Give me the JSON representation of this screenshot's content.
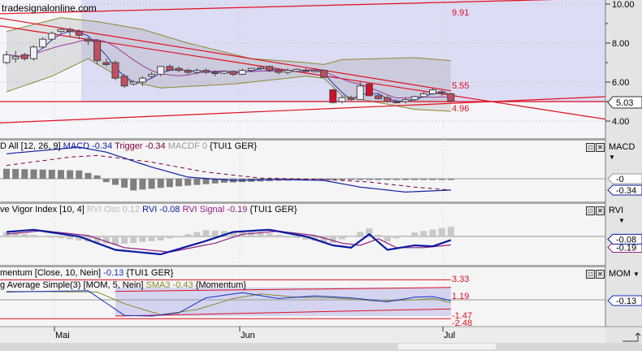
{
  "watermark": "tradesignalonline.com",
  "colors": {
    "up": "#f0f0f8",
    "down": "#c05060",
    "down_strong": "#d0102a",
    "ma_fast": "#3030c0",
    "ma_slow": "#9a3a9a",
    "band": "#8a8a30",
    "trend": "#e01020",
    "shade": "#dcdcf4",
    "macd": "#1020a0",
    "trigger": "#800040",
    "hist": "#808080",
    "rvi": "#0a1aa0",
    "rvi_signal": "#902080",
    "rvi_osc": "#c8c8c8",
    "mom": "#1030c0",
    "sma3": "#8a8a30"
  },
  "time_axis": {
    "labels": [
      "Mai",
      "Jun",
      "Jul"
    ]
  },
  "price": {
    "axis_label_ticks": [
      "10.00",
      "8.00",
      "6.00",
      "4.00"
    ],
    "last": "5.03",
    "level_labels": [
      "9.91",
      "5.55",
      "4.96"
    ],
    "ohlc": [
      [
        7.0,
        7.6,
        6.9,
        7.4
      ],
      [
        7.2,
        7.6,
        7.0,
        7.3
      ],
      [
        7.4,
        7.5,
        7.1,
        7.2
      ],
      [
        7.2,
        7.9,
        7.1,
        7.8
      ],
      [
        7.8,
        8.3,
        7.7,
        8.2
      ],
      [
        8.2,
        8.6,
        8.1,
        8.5
      ],
      [
        8.6,
        8.8,
        8.5,
        8.7
      ],
      [
        8.7,
        8.8,
        8.3,
        8.6
      ],
      [
        8.6,
        8.7,
        8.2,
        8.4
      ],
      [
        8.2,
        8.3,
        7.9,
        8.1
      ],
      [
        8.1,
        8.2,
        6.9,
        7.1
      ],
      [
        7.0,
        7.2,
        6.8,
        6.9
      ],
      [
        7.0,
        7.1,
        6.1,
        6.2
      ],
      [
        6.3,
        6.4,
        5.7,
        5.8
      ],
      [
        5.9,
        6.1,
        5.8,
        6.0
      ],
      [
        6.0,
        6.3,
        5.8,
        6.2
      ],
      [
        6.3,
        6.5,
        6.2,
        6.4
      ],
      [
        6.4,
        6.8,
        6.3,
        6.8
      ],
      [
        6.8,
        6.9,
        6.6,
        6.6
      ],
      [
        6.7,
        6.8,
        6.5,
        6.6
      ],
      [
        6.6,
        6.7,
        6.4,
        6.5
      ],
      [
        6.5,
        6.7,
        6.4,
        6.6
      ],
      [
        6.6,
        6.7,
        6.4,
        6.5
      ],
      [
        6.5,
        6.6,
        6.3,
        6.45
      ],
      [
        6.45,
        6.6,
        6.4,
        6.55
      ],
      [
        6.55,
        6.6,
        6.3,
        6.4
      ],
      [
        6.4,
        6.7,
        6.35,
        6.6
      ],
      [
        6.6,
        6.7,
        6.5,
        6.7
      ],
      [
        6.7,
        6.8,
        6.6,
        6.75
      ],
      [
        6.8,
        6.85,
        6.5,
        6.6
      ],
      [
        6.6,
        6.7,
        6.4,
        6.5
      ],
      [
        6.5,
        6.7,
        6.4,
        6.6
      ],
      [
        6.55,
        6.7,
        6.5,
        6.65
      ],
      [
        6.6,
        6.7,
        6.5,
        6.55
      ],
      [
        6.55,
        6.7,
        6.5,
        6.6
      ],
      [
        6.6,
        6.65,
        6.2,
        6.25
      ],
      [
        5.6,
        5.65,
        4.9,
        4.95
      ],
      [
        5.0,
        5.3,
        4.9,
        5.2
      ],
      [
        5.2,
        5.3,
        5.05,
        5.1
      ],
      [
        5.1,
        6.0,
        5.1,
        5.8
      ],
      [
        5.9,
        5.95,
        5.3,
        5.3
      ],
      [
        5.3,
        5.4,
        5.1,
        5.15
      ],
      [
        5.2,
        5.3,
        4.95,
        5.0
      ],
      [
        5.0,
        5.1,
        4.9,
        4.95
      ],
      [
        5.0,
        5.2,
        4.9,
        5.1
      ],
      [
        5.1,
        5.3,
        5.0,
        5.25
      ],
      [
        5.25,
        5.5,
        5.2,
        5.4
      ],
      [
        5.4,
        5.7,
        5.35,
        5.6
      ],
      [
        5.5,
        5.6,
        5.3,
        5.45
      ],
      [
        5.4,
        5.45,
        4.95,
        5.03
      ]
    ],
    "upper_band": [
      [
        0,
        8.6
      ],
      [
        6,
        9.3
      ],
      [
        10,
        9.1
      ],
      [
        15,
        8.7
      ],
      [
        20,
        8.0
      ],
      [
        27,
        7.2
      ],
      [
        33,
        7.0
      ],
      [
        35,
        6.9
      ],
      [
        37,
        7.15
      ],
      [
        45,
        7.25
      ],
      [
        49,
        7.1
      ]
    ],
    "lower_band": [
      [
        0,
        5.5
      ],
      [
        5,
        6.3
      ],
      [
        9,
        7.2
      ],
      [
        13,
        6.1
      ],
      [
        17,
        5.7
      ],
      [
        25,
        5.9
      ],
      [
        33,
        6.3
      ],
      [
        35,
        6.2
      ],
      [
        37,
        5.3
      ],
      [
        45,
        4.6
      ],
      [
        49,
        4.5
      ]
    ],
    "trend_lines": [
      {
        "from": [
          -1,
          9.5
        ],
        "to": [
          66,
          10.3
        ]
      },
      {
        "from": [
          -1,
          9.3
        ],
        "to": [
          49,
          5.55
        ]
      },
      {
        "from": [
          -1,
          8.9
        ],
        "to": [
          66,
          4.1
        ]
      },
      {
        "from": [
          -1,
          5.0
        ],
        "to": [
          66,
          5.0
        ]
      },
      {
        "from": [
          -1,
          3.9
        ],
        "to": [
          66,
          5.25
        ]
      }
    ]
  },
  "macd": {
    "header": {
      "prefix": "D All [12, 26, 9]",
      "macd": "MACD -0.34",
      "trigger": "Trigger -0.34",
      "macdf": "MACDF 0",
      "symbol": "{TUI1 GER}"
    },
    "axis_name": "MACD",
    "badges": [
      "-0",
      "-0.34"
    ],
    "macd_line": [
      [
        0,
        0.75
      ],
      [
        8,
        0.95
      ],
      [
        11,
        0.8
      ],
      [
        16,
        0.35
      ],
      [
        20,
        0.05
      ],
      [
        25,
        -0.05
      ],
      [
        30,
        -0.02
      ],
      [
        35,
        -0.05
      ],
      [
        39,
        -0.25
      ],
      [
        44,
        -0.4
      ],
      [
        49,
        -0.34
      ]
    ],
    "trigger_line": [
      [
        0,
        0.4
      ],
      [
        7,
        0.65
      ],
      [
        10,
        0.7
      ],
      [
        16,
        0.5
      ],
      [
        22,
        0.2
      ],
      [
        28,
        0.02
      ],
      [
        35,
        -0.02
      ],
      [
        40,
        -0.1
      ],
      [
        45,
        -0.25
      ],
      [
        49,
        -0.34
      ]
    ],
    "histogram": [
      [
        0,
        0.3
      ],
      [
        8,
        0.25
      ],
      [
        10,
        0.1
      ],
      [
        11,
        -0.1
      ],
      [
        14,
        -0.35
      ],
      [
        18,
        -0.25
      ],
      [
        24,
        -0.12
      ],
      [
        30,
        -0.06
      ],
      [
        36,
        -0.03
      ],
      [
        49,
        -0.01
      ]
    ]
  },
  "rvi": {
    "header": {
      "prefix": "ve Vigor Index [10, 4]",
      "osc": "RVI Osc 0.12",
      "rvi": "RVI -0.08",
      "signal": "RVI Signal -0.19",
      "symbol": "{TUI1 GER}"
    },
    "axis_name": "RVI",
    "badges": [
      "-0.08",
      "-0.19"
    ],
    "rvi_line": [
      [
        0,
        0.1
      ],
      [
        3,
        0.15
      ],
      [
        8,
        0.0
      ],
      [
        12,
        -0.3
      ],
      [
        17,
        -0.4
      ],
      [
        22,
        -0.1
      ],
      [
        25,
        0.1
      ],
      [
        29,
        0.15
      ],
      [
        33,
        0.0
      ],
      [
        36,
        -0.2
      ],
      [
        38,
        -0.25
      ],
      [
        40,
        0.05
      ],
      [
        42,
        -0.3
      ],
      [
        45,
        -0.2
      ],
      [
        47,
        -0.22
      ],
      [
        49,
        -0.08
      ]
    ],
    "signal_line": [
      [
        0,
        0.05
      ],
      [
        4,
        0.13
      ],
      [
        9,
        0.02
      ],
      [
        13,
        -0.25
      ],
      [
        18,
        -0.35
      ],
      [
        23,
        -0.15
      ],
      [
        26,
        0.05
      ],
      [
        30,
        0.12
      ],
      [
        34,
        0.02
      ],
      [
        37,
        -0.15
      ],
      [
        39,
        -0.2
      ],
      [
        41,
        -0.05
      ],
      [
        43,
        -0.25
      ],
      [
        46,
        -0.25
      ],
      [
        49,
        -0.19
      ]
    ],
    "osc": [
      [
        0,
        0.05
      ],
      [
        3,
        0.02
      ],
      [
        8,
        -0.05
      ],
      [
        12,
        -0.1
      ],
      [
        17,
        -0.05
      ],
      [
        22,
        0.08
      ],
      [
        25,
        0.06
      ],
      [
        29,
        0.04
      ],
      [
        33,
        -0.04
      ],
      [
        36,
        -0.08
      ],
      [
        40,
        0.1
      ],
      [
        42,
        -0.06
      ],
      [
        45,
        0.05
      ],
      [
        49,
        0.12
      ]
    ]
  },
  "momentum": {
    "header1": {
      "prefix": "mentum [Close, 10, Nein]",
      "value": "-0.13",
      "symbol": "{TUI1 GER}"
    },
    "header2": {
      "prefix": "g Average Simple(3) [MOM, 5, Nein]",
      "value": "SMA3 -0.43",
      "symbol": "{Momentum}"
    },
    "axis_name": "MOM",
    "badge": "-0.13",
    "level_labels": [
      "3.33",
      "1.19",
      "-1.47",
      "-2.48"
    ],
    "mom_line": [
      [
        0,
        1.2
      ],
      [
        9,
        1.4
      ],
      [
        11,
        -0.5
      ],
      [
        13,
        -2.4
      ],
      [
        16,
        -2.5
      ],
      [
        19,
        -2.0
      ],
      [
        22,
        0.3
      ],
      [
        26,
        1.1
      ],
      [
        30,
        0.2
      ],
      [
        34,
        0.6
      ],
      [
        38,
        0.3
      ],
      [
        42,
        -0.3
      ],
      [
        45,
        0.4
      ],
      [
        47,
        0.5
      ],
      [
        49,
        -0.13
      ]
    ],
    "sma3_line": [
      [
        0,
        1.3
      ],
      [
        10,
        1.2
      ],
      [
        13,
        -0.6
      ],
      [
        17,
        -2.3
      ],
      [
        21,
        -1.5
      ],
      [
        25,
        0.2
      ],
      [
        28,
        0.9
      ],
      [
        32,
        0.4
      ],
      [
        36,
        0.3
      ],
      [
        41,
        -0.2
      ],
      [
        45,
        0.0
      ],
      [
        47,
        0.2
      ],
      [
        49,
        -0.43
      ]
    ],
    "channel_upper": {
      "from": [
        12,
        1.3
      ],
      "to": [
        49,
        1.9
      ]
    },
    "channel_lower": {
      "from": [
        12,
        -2.5
      ],
      "to": [
        49,
        -1.4
      ]
    }
  }
}
